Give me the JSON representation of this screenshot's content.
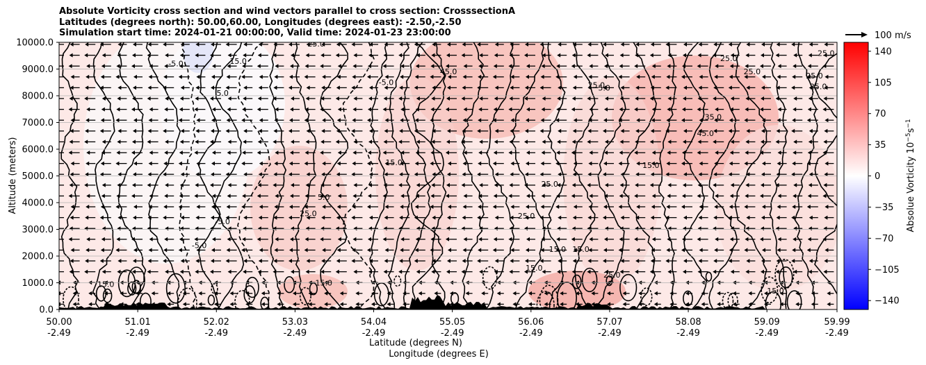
{
  "title_lines": [
    "Absolute Vorticity cross section and wind vectors parallel to cross section: CrosssectionA",
    "Latitudes (degrees north): 50.00,60.00, Longitudes (degrees east): -2.50,-2.50",
    "Simulation start time: 2024-01-21 00:00:00, Valid time: 2024-01-23 23:00:00"
  ],
  "chart_data": {
    "type": "heatmap",
    "title": "Absolute Vorticity cross section and wind vectors parallel to cross section: CrosssectionA",
    "ylabel": "Altitude (meters)",
    "xlabel_lines": [
      "Latitude (degrees N)",
      "Longitude (degrees E)"
    ],
    "ylim": [
      0,
      10000
    ],
    "yticks": [
      "0.0",
      "1000.0",
      "2000.0",
      "3000.0",
      "4000.0",
      "5000.0",
      "6000.0",
      "7000.0",
      "8000.0",
      "9000.0",
      "10000.0"
    ],
    "ytick_values": [
      0,
      1000,
      2000,
      3000,
      4000,
      5000,
      6000,
      7000,
      8000,
      9000,
      10000
    ],
    "xlim": [
      50.0,
      59.99
    ],
    "xticks": [
      {
        "lat": "50.00",
        "lon": "-2.49",
        "value": 50.0
      },
      {
        "lat": "51.01",
        "lon": "-2.49",
        "value": 51.01
      },
      {
        "lat": "52.02",
        "lon": "-2.49",
        "value": 52.02
      },
      {
        "lat": "53.03",
        "lon": "-2.49",
        "value": 53.03
      },
      {
        "lat": "54.04",
        "lon": "-2.49",
        "value": 54.04
      },
      {
        "lat": "55.05",
        "lon": "-2.49",
        "value": 55.05
      },
      {
        "lat": "56.06",
        "lon": "-2.49",
        "value": 56.06
      },
      {
        "lat": "57.07",
        "lon": "-2.49",
        "value": 57.07
      },
      {
        "lat": "58.08",
        "lon": "-2.49",
        "value": 58.08
      },
      {
        "lat": "59.09",
        "lon": "-2.49",
        "value": 59.09
      },
      {
        "lat": "59.99",
        "lon": "-2.49",
        "value": 59.99
      }
    ],
    "colorbar": {
      "label": "Absolue Vorticity 10",
      "label_units": "s",
      "label_exp1": "−5",
      "label_exp2": "−1",
      "range": [
        -150,
        150
      ],
      "ticks": [
        "140",
        "105",
        "70",
        "35",
        "0",
        "−35",
        "−70",
        "−105",
        "−140"
      ],
      "tick_values": [
        140,
        105,
        70,
        35,
        0,
        -35,
        -70,
        -105,
        -140
      ],
      "colormap": "bwr"
    },
    "quiver_key": {
      "label": "100 m/s"
    },
    "contour_labels": [
      {
        "text": "25.0",
        "lat": 53.3,
        "alt": 9850
      },
      {
        "text": "-5.0",
        "lat": 51.5,
        "alt": 9100
      },
      {
        "text": "15.0",
        "lat": 52.3,
        "alt": 9200
      },
      {
        "text": "5.0",
        "lat": 52.1,
        "alt": 8000
      },
      {
        "text": "-5.0",
        "lat": 54.2,
        "alt": 8400
      },
      {
        "text": "45.0",
        "lat": 55.0,
        "alt": 8800
      },
      {
        "text": "25.0",
        "lat": 56.9,
        "alt": 8300
      },
      {
        "text": "5.0",
        "lat": 57.0,
        "alt": 8200
      },
      {
        "text": "25.0",
        "lat": 58.6,
        "alt": 9300
      },
      {
        "text": "25.0",
        "lat": 58.9,
        "alt": 8800
      },
      {
        "text": "25.0",
        "lat": 59.85,
        "alt": 9500
      },
      {
        "text": "25.0",
        "lat": 59.7,
        "alt": 8650
      },
      {
        "text": "25.0",
        "lat": 59.75,
        "alt": 8250
      },
      {
        "text": "45.0",
        "lat": 58.3,
        "alt": 6500
      },
      {
        "text": "35.0",
        "lat": 58.4,
        "alt": 7100
      },
      {
        "text": "15.0",
        "lat": 57.6,
        "alt": 5300
      },
      {
        "text": "15.0",
        "lat": 56.7,
        "alt": 2150
      },
      {
        "text": "15.0",
        "lat": 56.4,
        "alt": 2150
      },
      {
        "text": "15.0",
        "lat": 56.1,
        "alt": 1450
      },
      {
        "text": "-5.0",
        "lat": 51.8,
        "alt": 2300
      },
      {
        "text": "5.0",
        "lat": 53.4,
        "alt": 4100
      },
      {
        "text": "25.0",
        "lat": 53.2,
        "alt": 3500
      },
      {
        "text": "15.0",
        "lat": 53.4,
        "alt": 900
      },
      {
        "text": "15.0",
        "lat": 50.6,
        "alt": 850
      },
      {
        "text": "-5.0",
        "lat": 52.1,
        "alt": 3200
      },
      {
        "text": "25.0",
        "lat": 56.0,
        "alt": 3400
      },
      {
        "text": "25.0",
        "lat": 56.3,
        "alt": 4600
      },
      {
        "text": "15.0",
        "lat": 54.3,
        "alt": 5400
      },
      {
        "text": "25.0",
        "lat": 57.1,
        "alt": 1200
      },
      {
        "text": "15.0",
        "lat": 59.2,
        "alt": 600
      }
    ],
    "wind_direction": "southward (toward lower latitude)"
  }
}
